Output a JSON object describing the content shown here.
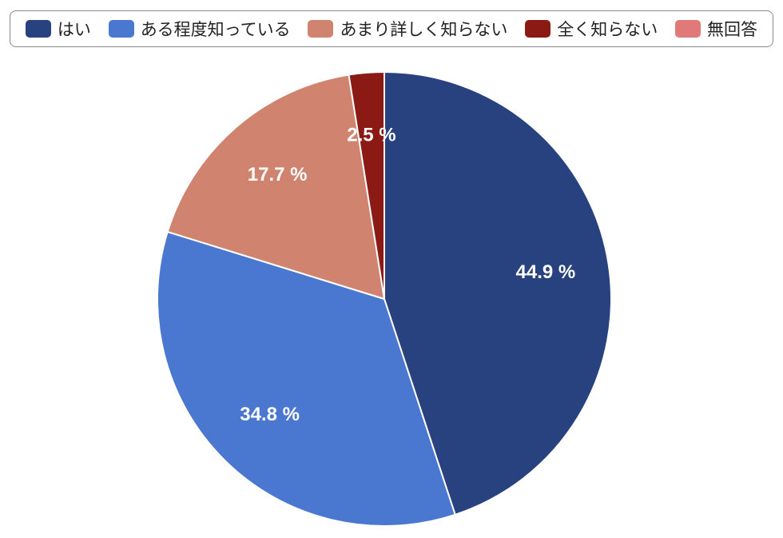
{
  "chart_data": {
    "type": "pie",
    "categories": [
      "はい",
      "ある程度知っている",
      "あまり詳しく知らない",
      "全く知らない",
      "無回答"
    ],
    "values": [
      44.9,
      34.8,
      17.7,
      2.5,
      0
    ],
    "labels": [
      "44.9 %",
      "34.8 %",
      "17.7 %",
      "2.5 %",
      ""
    ],
    "colors": [
      "#27427f",
      "#4a78d0",
      "#d08470",
      "#8b1a14",
      "#df7a78"
    ],
    "legend_position": "top"
  }
}
